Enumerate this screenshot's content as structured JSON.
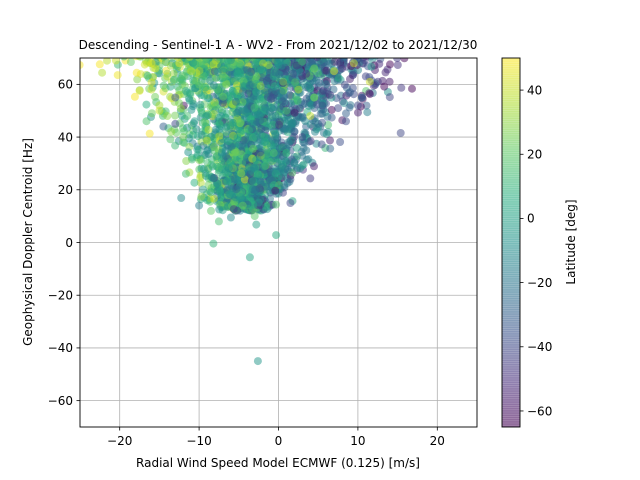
{
  "chart_data": {
    "type": "scatter",
    "title": "Descending - Sentinel-1 A - WV2 - From 2021/12/02 to 2021/12/30",
    "xlabel": "Radial Wind Speed Model ECMWF (0.125) [m/s]",
    "ylabel": "Geophysical Doppler Centroid [Hz]",
    "xlim": [
      -25,
      25
    ],
    "ylim": [
      -70,
      70
    ],
    "xticks": [
      -20,
      -10,
      0,
      10,
      20
    ],
    "yticks": [
      -60,
      -40,
      -20,
      0,
      20,
      40,
      60
    ],
    "xtick_labels": [
      "−20",
      "−10",
      "0",
      "10",
      "20"
    ],
    "ytick_labels": [
      "−60",
      "−40",
      "−20",
      "0",
      "20",
      "40",
      "60"
    ],
    "grid": true,
    "colormap": "viridis",
    "point_alpha": 0.5,
    "colorbar": {
      "label": "Latitude [deg]",
      "range": [
        -65,
        50
      ],
      "ticks": [
        -60,
        -40,
        -20,
        0,
        20,
        40
      ],
      "tick_labels": [
        "−60",
        "−40",
        "−20",
        "0",
        "20",
        "40"
      ]
    },
    "points": [
      [
        -2.6,
        -45,
        -5
      ],
      [
        -3.6,
        -5.6,
        3
      ],
      [
        -8.2,
        -0.4,
        10
      ],
      [
        -0.3,
        2.8,
        5
      ],
      [
        -2.8,
        6.8,
        0
      ],
      [
        -7.5,
        8,
        15
      ],
      [
        -3,
        10,
        20
      ],
      [
        -6,
        9.5,
        -10
      ],
      [
        -8.5,
        12,
        20
      ],
      [
        1.5,
        15,
        -40
      ],
      [
        -4.5,
        14,
        22
      ],
      [
        -10,
        14,
        -15
      ],
      [
        -12,
        40,
        25
      ],
      [
        -13,
        45,
        -40
      ],
      [
        -14,
        48,
        30
      ],
      [
        -15,
        52,
        35
      ],
      [
        -16,
        58,
        40
      ],
      [
        -17.5,
        57.5,
        45
      ],
      [
        -15.5,
        66,
        42
      ],
      [
        -14,
        63,
        38
      ],
      [
        -12.5,
        68,
        45
      ],
      [
        -11,
        65,
        35
      ],
      [
        -16,
        68,
        44
      ],
      [
        -13,
        55,
        -35
      ],
      [
        -13.5,
        42,
        30
      ],
      [
        -12,
        38,
        20
      ],
      [
        -14.5,
        44,
        -30
      ],
      [
        -15,
        50,
        40
      ],
      [
        -11.5,
        48,
        15
      ],
      [
        -10,
        60,
        20
      ],
      [
        12.5,
        61,
        -45
      ],
      [
        12,
        59.5,
        -50
      ],
      [
        11,
        63,
        -42
      ],
      [
        10,
        52,
        -40
      ],
      [
        9,
        57,
        -30
      ],
      [
        8.5,
        46,
        -38
      ],
      [
        8,
        66,
        -50
      ],
      [
        9.5,
        68,
        40
      ],
      [
        7,
        65,
        45
      ],
      [
        6,
        60,
        -20
      ],
      [
        5.5,
        52,
        -35
      ],
      [
        4.5,
        55,
        20
      ],
      [
        3,
        40,
        -40
      ],
      [
        2,
        42,
        -30
      ],
      [
        1,
        50,
        15
      ],
      [
        2.5,
        58,
        35
      ],
      [
        3.5,
        64,
        -45
      ],
      [
        4.5,
        66,
        25
      ],
      [
        6.5,
        56,
        -48
      ],
      [
        7.5,
        51,
        -40
      ],
      [
        10.5,
        55,
        -35
      ],
      [
        11.5,
        61,
        42
      ],
      [
        9,
        62,
        -55
      ],
      [
        8.5,
        49,
        -30
      ],
      [
        5,
        45,
        -25
      ],
      [
        4,
        48,
        40
      ],
      [
        3.5,
        35,
        -20
      ],
      [
        2,
        30,
        -10
      ],
      [
        1.5,
        24,
        -35
      ],
      [
        1,
        34,
        10
      ]
    ],
    "cluster_seed": 7,
    "cluster_count": 2400
  }
}
